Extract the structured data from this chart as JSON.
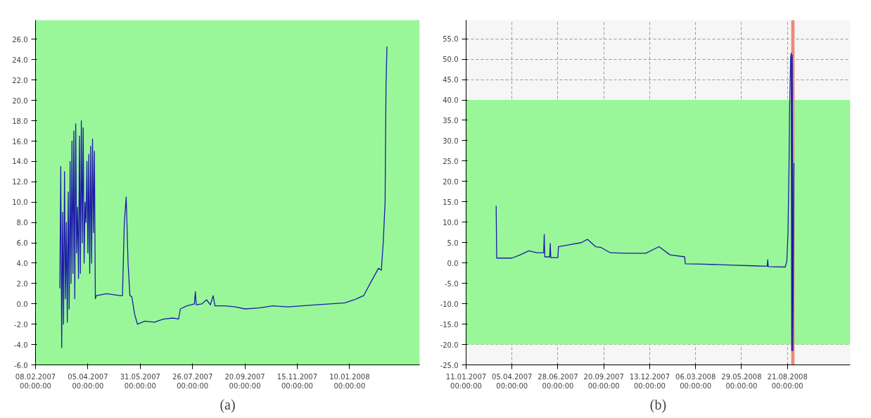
{
  "chart_data": [
    {
      "type": "line",
      "title": "(a)",
      "grid": true,
      "xlim": [
        "2007-02-08",
        "2008-03-25"
      ],
      "ylim": [
        -6,
        27.9
      ],
      "xticks": [
        {
          "value": "2007-02-08",
          "label": "08.02.2007\n00:00:00"
        },
        {
          "value": "2007-04-05",
          "label": "05.04.2007\n00:00:00"
        },
        {
          "value": "2007-05-31",
          "label": "31.05.2007\n00:00:00"
        },
        {
          "value": "2007-07-26",
          "label": "26.07.2007\n00:00:00"
        },
        {
          "value": "2007-09-20",
          "label": "20.09.2007\n00:00:00"
        },
        {
          "value": "2007-11-15",
          "label": "15.11.2007\n00:00:00"
        },
        {
          "value": "2008-01-10",
          "label": "10.01.2008\n00:00:00"
        }
      ],
      "yticks": [
        {
          "value": -6,
          "label": "-6.0"
        },
        {
          "value": -4,
          "label": "-4.0"
        },
        {
          "value": -2,
          "label": "-2.0"
        },
        {
          "value": 0,
          "label": "0.0"
        },
        {
          "value": 2,
          "label": "2.0"
        },
        {
          "value": 4,
          "label": "4.0"
        },
        {
          "value": 6,
          "label": "6.0"
        },
        {
          "value": 8,
          "label": "8.0"
        },
        {
          "value": 10,
          "label": "10.0"
        },
        {
          "value": 12,
          "label": "12.0"
        },
        {
          "value": 14,
          "label": "14.0"
        },
        {
          "value": 16,
          "label": "16.0"
        },
        {
          "value": 18,
          "label": "18.0"
        },
        {
          "value": 20,
          "label": "20.0"
        },
        {
          "value": 22,
          "label": "22.0"
        },
        {
          "value": 24,
          "label": "24.0"
        },
        {
          "value": 26,
          "label": "26.0"
        }
      ],
      "bands": [
        {
          "axis": "y",
          "from": -6,
          "to": 27.9,
          "color": "#99f799"
        }
      ],
      "series": [
        {
          "color": "#1c1ca8",
          "x": [
            "2007-03-06",
            "2007-03-07",
            "2007-03-08",
            "2007-03-09",
            "2007-03-10",
            "2007-03-11",
            "2007-03-12",
            "2007-03-13",
            "2007-03-14",
            "2007-03-15",
            "2007-03-16",
            "2007-03-17",
            "2007-03-18",
            "2007-03-19",
            "2007-03-20",
            "2007-03-21",
            "2007-03-22",
            "2007-03-23",
            "2007-03-24",
            "2007-03-25",
            "2007-03-26",
            "2007-03-27",
            "2007-03-28",
            "2007-03-29",
            "2007-03-30",
            "2007-03-31",
            "2007-04-01",
            "2007-04-02",
            "2007-04-03",
            "2007-04-04",
            "2007-04-05",
            "2007-04-06",
            "2007-04-07",
            "2007-04-08",
            "2007-04-09",
            "2007-04-10",
            "2007-04-11",
            "2007-04-12",
            "2007-04-13",
            "2007-04-14",
            "2007-04-25",
            "2007-05-10",
            "2007-05-12",
            "2007-05-14",
            "2007-05-16",
            "2007-05-18",
            "2007-05-20",
            "2007-05-22",
            "2007-05-25",
            "2007-05-28",
            "2007-06-05",
            "2007-06-15",
            "2007-06-25",
            "2007-07-05",
            "2007-07-11",
            "2007-07-13",
            "2007-07-20",
            "2007-07-28",
            "2007-07-29",
            "2007-07-30",
            "2007-08-05",
            "2007-08-10",
            "2007-08-14",
            "2007-08-17",
            "2007-08-19",
            "2007-08-30",
            "2007-09-10",
            "2007-09-20",
            "2007-10-05",
            "2007-10-20",
            "2007-11-05",
            "2007-11-20",
            "2007-12-05",
            "2007-12-20",
            "2008-01-05",
            "2008-01-15",
            "2008-01-25",
            "2008-02-01",
            "2008-02-07",
            "2008-02-10",
            "2008-02-13",
            "2008-02-15",
            "2008-02-16",
            "2008-02-17",
            "2008-02-18",
            "2008-02-19"
          ],
          "values": [
            1.5,
            13.5,
            -4.3,
            9.0,
            -2.0,
            13.0,
            0.5,
            8.0,
            -1.8,
            11.0,
            -0.5,
            14.0,
            2.0,
            16.0,
            3.0,
            17.0,
            0.5,
            17.7,
            5.0,
            9.5,
            2.5,
            16.5,
            3.0,
            18.0,
            6.0,
            17.3,
            4.0,
            10.0,
            8.0,
            14.0,
            5.0,
            14.7,
            3.0,
            15.5,
            4.0,
            16.2,
            7.0,
            15.0,
            0.5,
            0.8,
            1.0,
            0.8,
            0.8,
            8.0,
            10.5,
            4.0,
            0.8,
            0.7,
            -1.0,
            -2.0,
            -1.7,
            -1.8,
            -1.5,
            -1.4,
            -1.5,
            -0.5,
            -0.2,
            0.0,
            1.2,
            -0.1,
            0.0,
            0.4,
            -0.1,
            0.8,
            -0.2,
            -0.2,
            -0.3,
            -0.5,
            -0.4,
            -0.2,
            -0.3,
            -0.2,
            -0.1,
            0.0,
            0.1,
            0.4,
            0.8,
            2.0,
            3.0,
            3.5,
            3.3,
            6.0,
            8.0,
            10.0,
            21.5,
            25.3
          ]
        }
      ]
    },
    {
      "type": "line",
      "title": "(b)",
      "grid": true,
      "xlim": [
        "2007-01-11",
        "2008-12-14"
      ],
      "ylim": [
        -25,
        59.6
      ],
      "xticks": [
        {
          "value": "2007-01-11",
          "label": "11.01.2007\n00:00:00"
        },
        {
          "value": "2007-04-05",
          "label": "05.04.2007\n00:00:00"
        },
        {
          "value": "2007-06-28",
          "label": "28.06.2007\n00:00:00"
        },
        {
          "value": "2007-09-20",
          "label": "20.09.2007\n00:00:00"
        },
        {
          "value": "2007-12-13",
          "label": "13.12.2007\n00:00:00"
        },
        {
          "value": "2008-03-06",
          "label": "06.03.2008\n00:00:00"
        },
        {
          "value": "2008-05-29",
          "label": "29.05.2008\n00:00:00"
        },
        {
          "value": "2008-08-21",
          "label": "21.08.2008\n00:00:00"
        }
      ],
      "yticks": [
        {
          "value": -25,
          "label": "-25.0"
        },
        {
          "value": -20,
          "label": "-20.0"
        },
        {
          "value": -15,
          "label": "-15.0"
        },
        {
          "value": -10,
          "label": "-10.0"
        },
        {
          "value": -5,
          "label": "-5.0"
        },
        {
          "value": 0,
          "label": "0.0"
        },
        {
          "value": 5,
          "label": "5.0"
        },
        {
          "value": 10,
          "label": "10.0"
        },
        {
          "value": 15,
          "label": "15.0"
        },
        {
          "value": 20,
          "label": "20.0"
        },
        {
          "value": 25,
          "label": "25.0"
        },
        {
          "value": 30,
          "label": "30.0"
        },
        {
          "value": 35,
          "label": "35.0"
        },
        {
          "value": 40,
          "label": "40.0"
        },
        {
          "value": 45,
          "label": "45.0"
        },
        {
          "value": 50,
          "label": "50.0"
        },
        {
          "value": 55,
          "label": "55.0"
        }
      ],
      "bands": [
        {
          "axis": "y",
          "from": -20,
          "to": 40,
          "color": "#99f799"
        },
        {
          "axis": "x",
          "from": "2008-08-28",
          "to": "2008-09-03",
          "color": "#f08878"
        }
      ],
      "series": [
        {
          "color": "#1c1ca8",
          "x": [
            "2007-03-07",
            "2007-03-08",
            "2007-04-05",
            "2007-04-20",
            "2007-05-06",
            "2007-05-20",
            "2007-06-02",
            "2007-06-03",
            "2007-06-04",
            "2007-06-13",
            "2007-06-14",
            "2007-06-15",
            "2007-06-28",
            "2007-06-29",
            "2007-07-20",
            "2007-08-10",
            "2007-08-21",
            "2007-09-05",
            "2007-09-15",
            "2007-10-02",
            "2007-11-01",
            "2007-12-06",
            "2007-12-30",
            "2008-01-19",
            "2008-02-15",
            "2008-02-16",
            "2008-03-20",
            "2008-05-06",
            "2008-06-20",
            "2008-07-15",
            "2008-07-16",
            "2008-07-17",
            "2008-08-17",
            "2008-08-20",
            "2008-08-22",
            "2008-08-24",
            "2008-08-25",
            "2008-08-27",
            "2008-08-28",
            "2008-08-29",
            "2008-08-30",
            "2008-08-31",
            "2008-09-01",
            "2008-09-02"
          ],
          "values": [
            14.0,
            1.2,
            1.2,
            2.0,
            3.0,
            2.5,
            2.5,
            7.0,
            1.5,
            1.5,
            4.8,
            1.3,
            1.3,
            4.0,
            4.5,
            5.0,
            5.8,
            4.0,
            3.8,
            2.5,
            2.4,
            2.4,
            4.0,
            2.0,
            1.5,
            -0.2,
            -0.3,
            -0.5,
            -0.7,
            -0.8,
            0.8,
            -0.9,
            -1.0,
            0.5,
            7.0,
            24.0,
            38.0,
            50.5,
            51.5,
            -21.5,
            51.0,
            -21.5,
            3.0,
            24.5
          ]
        }
      ]
    }
  ]
}
